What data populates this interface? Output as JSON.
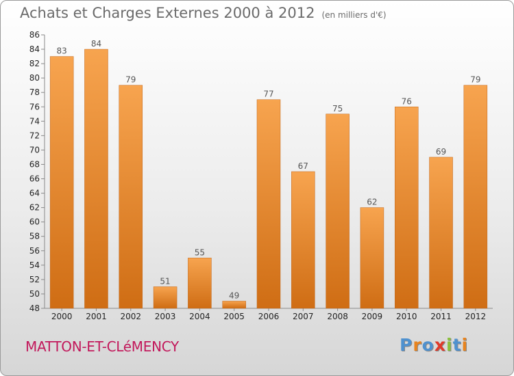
{
  "header": {
    "title": "Achats et Charges Externes 2000 à 2012",
    "subtitle": "(en milliers d'€)"
  },
  "footer": {
    "city": "MATTON-ET-CLéMENCY",
    "logo_text": "Proxiti"
  },
  "colors": {
    "bar_light": "#f7a44f",
    "bar_dark": "#cf6d14",
    "city_text": "#c2185b",
    "logo_letters": [
      "#4f91cf",
      "#e8841f",
      "#4f91cf",
      "#e03a2a",
      "#8bbf3c",
      "#4f91cf",
      "#e8841f"
    ]
  },
  "chart_data": {
    "type": "bar",
    "categories": [
      "2000",
      "2001",
      "2002",
      "2003",
      "2004",
      "2005",
      "2006",
      "2007",
      "2008",
      "2009",
      "2010",
      "2011",
      "2012"
    ],
    "values": [
      83,
      84,
      79,
      51,
      55,
      49,
      77,
      67,
      75,
      62,
      76,
      69,
      79
    ],
    "value_labels": [
      "83",
      "84",
      "79",
      "51",
      "55",
      "49",
      "77",
      "67",
      "75",
      "62",
      "76",
      "69",
      "79"
    ],
    "title": "Achats et Charges Externes 2000 à 2012",
    "xlabel": "",
    "ylabel": "",
    "ylim": [
      48,
      86
    ],
    "yticks": [
      "48",
      "50",
      "52",
      "54",
      "56",
      "58",
      "60",
      "62",
      "64",
      "66",
      "68",
      "70",
      "72",
      "74",
      "76",
      "78",
      "80",
      "82",
      "84",
      "86"
    ],
    "grid": false,
    "legend": "none"
  }
}
